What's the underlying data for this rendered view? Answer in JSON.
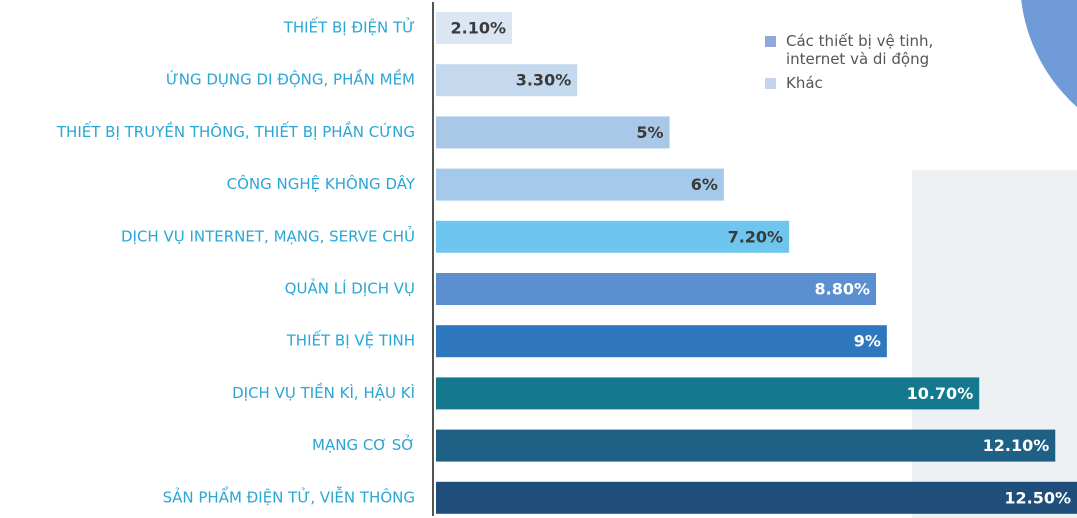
{
  "chart_data": {
    "type": "hbar",
    "categories": [
      "THIẾT BỊ ĐIỆN TỬ",
      "ỨNG DỤNG DI ĐỘNG, PHẦN MỀM",
      "THIẾT BỊ TRUYỀN THÔNG, THIẾT BỊ PHẦN CỨNG",
      "CÔNG NGHỆ KHÔNG DÂY",
      "DỊCH VỤ INTERNET, MẠNG, SERVE CHỦ",
      "QUẢN LÍ DỊCH VỤ",
      "THIẾT BỊ VỆ TINH",
      "DỊCH VỤ TIỀN KÌ, HẬU KÌ",
      "MẠNG CƠ SỞ",
      "SẢN PHẨM ĐIỆN TỬ, VIỄN THÔNG"
    ],
    "values": [
      2.1,
      3.3,
      5,
      6,
      7.2,
      8.8,
      9,
      10.7,
      12.1,
      12.5
    ],
    "value_labels": [
      "2.10%",
      "3.30%",
      "5%",
      "6%",
      "7.20%",
      "8.80%",
      "9%",
      "10.70%",
      "12.10%",
      "12.50%"
    ],
    "colors": [
      "#dce6f2",
      "#c5d9ee",
      "#a9c8e8",
      "#a4c9ea",
      "#6ec6ef",
      "#5b8fd0",
      "#2f78bd",
      "#14798f",
      "#1e6185",
      "#1f4e7b"
    ],
    "value_label_colors": [
      "#3a3a3a",
      "#3a3a3a",
      "#3a3a3a",
      "#3a3a3a",
      "#3a3a3a",
      "#ffffff",
      "#ffffff",
      "#ffffff",
      "#ffffff",
      "#ffffff"
    ],
    "xlim": [
      0.7,
      12.5
    ],
    "legend": [
      {
        "name": "Các thiết bị vệ tinh, internet và di động",
        "color": "#8fa9d8"
      },
      {
        "name": "Khác",
        "color": "#c5d5ee"
      }
    ]
  }
}
